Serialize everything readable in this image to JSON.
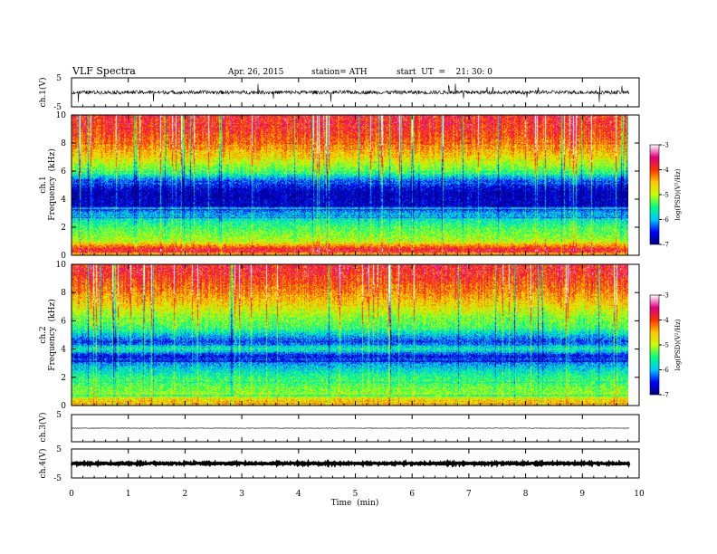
{
  "header": {
    "title": "VLF  Spectra",
    "date": "Apr. 26,  2015",
    "station": "station= ATH",
    "start": "start  UT  =    21: 30: 0"
  },
  "chart_data": {
    "type": "heatmap",
    "xlabel": "Time  (min)",
    "xlim": [
      0,
      10
    ],
    "x_ticks": [
      "0",
      "1",
      "2",
      "3",
      "4",
      "5",
      "6",
      "7",
      "8",
      "9",
      "10"
    ],
    "data_end_min": 9.83,
    "panels": [
      {
        "id": "ch1_waveform",
        "kind": "line",
        "ylabel": "ch.1(V)",
        "ylim": [
          -5,
          5
        ],
        "y_ticks": [
          "5",
          "-5"
        ],
        "baseline_v": 0,
        "noise_amplitude_v": 1.1,
        "spike_amplitude_v": 3.5
      },
      {
        "id": "ch1_spectrogram",
        "kind": "heatmap",
        "ylabel_channel": "ch.1",
        "ylabel": "Frequency  (kHz)",
        "ylim": [
          0,
          10
        ],
        "y_ticks": [
          "0",
          "2",
          "4",
          "6",
          "8",
          "10"
        ],
        "colorbar": {
          "label": "log(PSD)(V²/Hz)",
          "range": [
            -7,
            -3
          ],
          "ticks": [
            "-3",
            "-4",
            "-5",
            "-6",
            "-7"
          ],
          "colors": [
            "#000080",
            "#0000ff",
            "#00c8ff",
            "#00ff80",
            "#c8ff00",
            "#ffc800",
            "#ff3000",
            "#e00080",
            "#ffffff"
          ]
        },
        "log_psd_profile": [
          {
            "f": 0.0,
            "v": -4.6
          },
          {
            "f": 0.3,
            "v": -3.6
          },
          {
            "f": 0.6,
            "v": -4.2
          },
          {
            "f": 1.0,
            "v": -5.0
          },
          {
            "f": 2.0,
            "v": -5.4
          },
          {
            "f": 3.0,
            "v": -6.0
          },
          {
            "f": 3.5,
            "v": -6.7
          },
          {
            "f": 4.5,
            "v": -6.8
          },
          {
            "f": 5.3,
            "v": -6.3
          },
          {
            "f": 6.0,
            "v": -5.3
          },
          {
            "f": 7.0,
            "v": -4.7
          },
          {
            "f": 8.0,
            "v": -4.2
          },
          {
            "f": 9.0,
            "v": -3.9
          },
          {
            "f": 10.0,
            "v": -3.8
          }
        ]
      },
      {
        "id": "ch2_spectrogram",
        "kind": "heatmap",
        "ylabel_channel": "ch.2",
        "ylabel": "Frequency  (kHz)",
        "ylim": [
          0,
          10
        ],
        "y_ticks": [
          "0",
          "2",
          "4",
          "6",
          "8",
          "10"
        ],
        "colorbar": {
          "label": "log(PSD)(V²/Hz)",
          "range": [
            -7,
            -3
          ],
          "ticks": [
            "-3",
            "-4",
            "-5",
            "-6",
            "-7"
          ],
          "colors": [
            "#000080",
            "#0000ff",
            "#00c8ff",
            "#00ff80",
            "#c8ff00",
            "#ffc800",
            "#ff3000",
            "#e00080",
            "#ffffff"
          ]
        },
        "log_psd_profile": [
          {
            "f": 0.0,
            "v": -4.2
          },
          {
            "f": 0.5,
            "v": -4.8
          },
          {
            "f": 1.0,
            "v": -5.2
          },
          {
            "f": 2.0,
            "v": -5.5
          },
          {
            "f": 3.0,
            "v": -6.1
          },
          {
            "f": 3.5,
            "v": -6.6
          },
          {
            "f": 4.0,
            "v": -5.6
          },
          {
            "f": 4.5,
            "v": -6.4
          },
          {
            "f": 5.5,
            "v": -5.4
          },
          {
            "f": 6.5,
            "v": -5.0
          },
          {
            "f": 7.5,
            "v": -4.5
          },
          {
            "f": 8.5,
            "v": -4.1
          },
          {
            "f": 9.5,
            "v": -3.8
          },
          {
            "f": 10.0,
            "v": -3.8
          }
        ]
      },
      {
        "id": "ch3_waveform",
        "kind": "line",
        "ylabel": "ch.3(V)",
        "ylim": [
          -5,
          5
        ],
        "y_ticks": [
          "5"
        ],
        "baseline_v": 0,
        "noise_amplitude_v": 0.1
      },
      {
        "id": "ch4_waveform",
        "kind": "line",
        "ylabel": "ch.4(V)",
        "ylim": [
          -5,
          5
        ],
        "y_ticks": [
          "5",
          "-5"
        ],
        "baseline_v": 0,
        "noise_amplitude_v": 0.25
      }
    ]
  }
}
